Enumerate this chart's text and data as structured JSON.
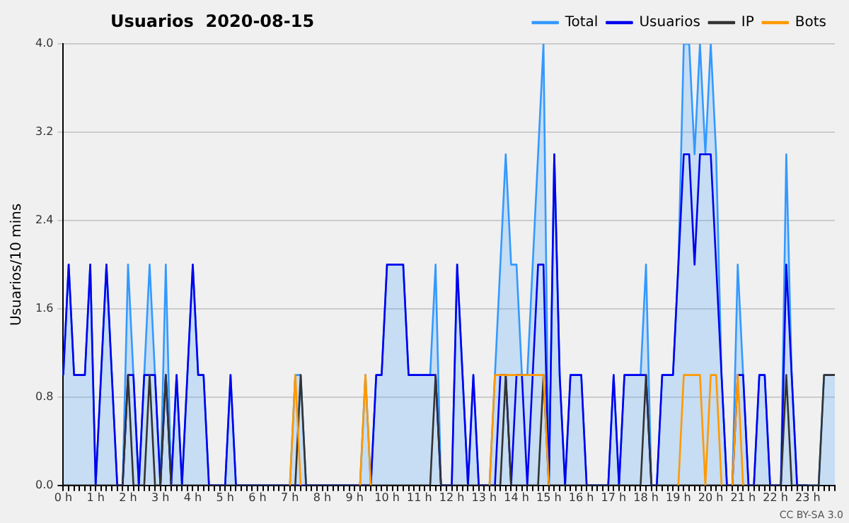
{
  "chart_data": {
    "type": "line",
    "title": "Usuarios  2020-08-15",
    "ylabel": "Usuarios/10 mins",
    "categories": [
      "0 h",
      null,
      null,
      null,
      null,
      null,
      "1 h",
      null,
      null,
      null,
      null,
      null,
      "2 h",
      null,
      null,
      null,
      null,
      null,
      "3 h",
      null,
      null,
      null,
      null,
      null,
      "4 h",
      null,
      null,
      null,
      null,
      null,
      "5 h",
      null,
      null,
      null,
      null,
      null,
      "6 h",
      null,
      null,
      null,
      null,
      null,
      "7 h",
      null,
      null,
      null,
      null,
      null,
      "8 h",
      null,
      null,
      null,
      null,
      null,
      "9 h",
      null,
      null,
      null,
      null,
      null,
      "10 h",
      null,
      null,
      null,
      null,
      null,
      "11 h",
      null,
      null,
      null,
      null,
      null,
      "12 h",
      null,
      null,
      null,
      null,
      null,
      "13 h",
      null,
      null,
      null,
      null,
      null,
      "14 h",
      null,
      null,
      null,
      null,
      null,
      "15 h",
      null,
      null,
      null,
      null,
      null,
      "16 h",
      null,
      null,
      null,
      null,
      null,
      "17 h",
      null,
      null,
      null,
      null,
      null,
      "18 h",
      null,
      null,
      null,
      null,
      null,
      "19 h",
      null,
      null,
      null,
      null,
      null,
      "20 h",
      null,
      null,
      null,
      null,
      null,
      "21 h",
      null,
      null,
      null,
      null,
      null,
      "22 h",
      null,
      null,
      null,
      null,
      null,
      "23 h",
      null,
      null,
      null,
      null,
      null
    ],
    "series": [
      {
        "name": "Total",
        "type": "area",
        "color": "#3399ff",
        "values": [
          1,
          2,
          1,
          1,
          1,
          2,
          0,
          1,
          2,
          1,
          0,
          0,
          2,
          1,
          0,
          1,
          2,
          1,
          0,
          2,
          0,
          1,
          0,
          1,
          2,
          1,
          1,
          0,
          0,
          0,
          0,
          1,
          0,
          0,
          0,
          0,
          0,
          0,
          0,
          0,
          0,
          0,
          0,
          1,
          1,
          0,
          0,
          0,
          0,
          0,
          0,
          0,
          0,
          0,
          0,
          0,
          1,
          0,
          1,
          1,
          2,
          2,
          2,
          2,
          1,
          1,
          1,
          1,
          1,
          2,
          0,
          0,
          0,
          2,
          1,
          0,
          1,
          0,
          0,
          0,
          1,
          2,
          3,
          2,
          2,
          1,
          1,
          2,
          3,
          4,
          0,
          3,
          1,
          0,
          1,
          1,
          1,
          0,
          0,
          0,
          0,
          0,
          1,
          0,
          1,
          1,
          1,
          1,
          2,
          0,
          0,
          1,
          1,
          1,
          2,
          4,
          4,
          3,
          4,
          3,
          4,
          3,
          1,
          0,
          0,
          2,
          1,
          0,
          0,
          1,
          1,
          0,
          0,
          0,
          3,
          1,
          0,
          0,
          0,
          0,
          0,
          1,
          1,
          1
        ]
      },
      {
        "name": "Usuarios",
        "type": "line",
        "color": "#0000ee",
        "values": [
          1,
          2,
          1,
          1,
          1,
          2,
          0,
          1,
          2,
          1,
          0,
          0,
          1,
          1,
          0,
          1,
          1,
          1,
          0,
          1,
          0,
          1,
          0,
          1,
          2,
          1,
          1,
          0,
          0,
          0,
          0,
          1,
          0,
          0,
          0,
          0,
          0,
          0,
          0,
          0,
          0,
          0,
          0,
          0,
          0,
          0,
          0,
          0,
          0,
          0,
          0,
          0,
          0,
          0,
          0,
          0,
          0,
          0,
          1,
          1,
          2,
          2,
          2,
          2,
          1,
          1,
          1,
          1,
          1,
          1,
          0,
          0,
          0,
          2,
          1,
          0,
          1,
          0,
          0,
          0,
          0,
          1,
          1,
          0,
          1,
          1,
          0,
          1,
          2,
          2,
          0,
          3,
          1,
          0,
          1,
          1,
          1,
          0,
          0,
          0,
          0,
          0,
          1,
          0,
          1,
          1,
          1,
          1,
          1,
          0,
          0,
          1,
          1,
          1,
          2,
          3,
          3,
          2,
          3,
          3,
          3,
          2,
          1,
          0,
          0,
          1,
          1,
          0,
          0,
          1,
          1,
          0,
          0,
          0,
          2,
          1,
          0,
          0,
          0,
          null,
          null,
          null,
          null,
          null
        ]
      },
      {
        "name": "IP",
        "type": "line",
        "color": "#333333",
        "values": [
          0,
          0,
          0,
          0,
          0,
          0,
          0,
          0,
          0,
          0,
          0,
          0,
          1,
          0,
          0,
          0,
          1,
          0,
          0,
          1,
          0,
          0,
          0,
          0,
          0,
          0,
          0,
          0,
          0,
          0,
          0,
          0,
          0,
          0,
          0,
          0,
          0,
          0,
          0,
          0,
          0,
          0,
          0,
          0,
          1,
          0,
          0,
          0,
          0,
          0,
          0,
          0,
          0,
          0,
          0,
          0,
          0,
          0,
          0,
          0,
          0,
          0,
          0,
          0,
          0,
          0,
          0,
          0,
          0,
          1,
          0,
          0,
          0,
          0,
          0,
          0,
          0,
          0,
          0,
          0,
          0,
          0,
          1,
          0,
          0,
          0,
          0,
          0,
          0,
          1,
          0,
          0,
          0,
          0,
          0,
          0,
          0,
          0,
          0,
          0,
          0,
          0,
          0,
          0,
          0,
          0,
          0,
          0,
          1,
          0,
          0,
          0,
          0,
          0,
          0,
          0,
          0,
          0,
          0,
          0,
          0,
          0,
          0,
          0,
          0,
          0,
          0,
          0,
          0,
          0,
          0,
          0,
          0,
          0,
          1,
          0,
          0,
          0,
          0,
          0,
          0,
          1,
          1,
          1
        ]
      },
      {
        "name": "Bots",
        "type": "line",
        "color": "#ff9900",
        "values": [
          null,
          null,
          null,
          null,
          null,
          null,
          null,
          null,
          null,
          null,
          null,
          null,
          null,
          null,
          null,
          null,
          null,
          null,
          null,
          null,
          null,
          null,
          null,
          null,
          null,
          null,
          null,
          null,
          null,
          null,
          null,
          null,
          null,
          null,
          null,
          null,
          null,
          null,
          null,
          null,
          null,
          null,
          0,
          1,
          0,
          null,
          null,
          null,
          null,
          null,
          null,
          null,
          null,
          null,
          null,
          0,
          1,
          0,
          null,
          null,
          null,
          null,
          null,
          null,
          null,
          null,
          null,
          null,
          null,
          null,
          null,
          null,
          null,
          null,
          null,
          null,
          null,
          null,
          null,
          0,
          1,
          1,
          1,
          1,
          1,
          1,
          1,
          1,
          1,
          1,
          0,
          null,
          null,
          null,
          null,
          null,
          null,
          null,
          null,
          null,
          null,
          null,
          null,
          null,
          null,
          null,
          null,
          null,
          null,
          null,
          null,
          null,
          null,
          null,
          0,
          1,
          1,
          1,
          1,
          0,
          1,
          1,
          0,
          null,
          0,
          1,
          0,
          null,
          null,
          null,
          null,
          null,
          null,
          null,
          null,
          null,
          null,
          null,
          null,
          null,
          null,
          null,
          null,
          null
        ]
      }
    ],
    "ylim": [
      0,
      4
    ],
    "yticks": [
      {
        "value": 0,
        "label": "0.0"
      },
      {
        "value": 0.8,
        "label": "0.8"
      },
      {
        "value": 1.6,
        "label": "1.6"
      },
      {
        "value": 2.4,
        "label": "2.4"
      },
      {
        "value": 3.2,
        "label": "3.2"
      },
      {
        "value": 4,
        "label": "4.0"
      }
    ],
    "grid": "y",
    "legend": "top right",
    "marker": "none",
    "line_style": "solid",
    "annotations": [
      "CC BY-SA 3.0"
    ]
  }
}
